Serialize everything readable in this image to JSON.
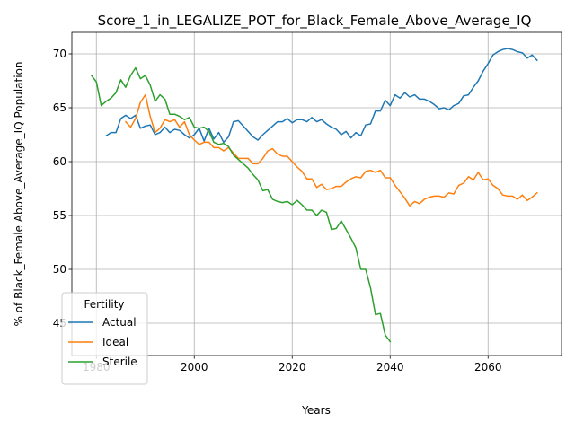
{
  "chart_data": {
    "type": "line",
    "title": "Score_1_in_LEGALIZE_POT_for_Black_Female_Above_Average_IQ",
    "xlabel": "Years",
    "ylabel": "% of Black_Female Above_Average_IQ Population",
    "xlim": [
      1975,
      2075
    ],
    "ylim": [
      42,
      72
    ],
    "xticks": [
      1980,
      2000,
      2020,
      2040,
      2060
    ],
    "yticks": [
      45,
      50,
      55,
      60,
      65,
      70
    ],
    "grid": true,
    "legend": {
      "title": "Fertility",
      "position": "bottom-left"
    },
    "series": [
      {
        "name": "Actual",
        "color": "#1f77b4",
        "x": [
          1982,
          1983,
          1984,
          1985,
          1986,
          1987,
          1988,
          1989,
          1990,
          1991,
          1992,
          1993,
          1994,
          1995,
          1996,
          1997,
          1998,
          1999,
          2000,
          2001,
          2002,
          2003,
          2004,
          2005,
          2006,
          2007,
          2008,
          2009,
          2010,
          2011,
          2012,
          2013,
          2014,
          2015,
          2016,
          2017,
          2018,
          2019,
          2020,
          2021,
          2022,
          2023,
          2024,
          2025,
          2026,
          2027,
          2028,
          2029,
          2030,
          2031,
          2032,
          2033,
          2034,
          2035,
          2036,
          2037,
          2038,
          2039,
          2040,
          2041,
          2042,
          2043,
          2044,
          2045,
          2046,
          2047,
          2048,
          2049,
          2050,
          2051,
          2052,
          2053,
          2054,
          2055,
          2056,
          2057,
          2058,
          2059,
          2060,
          2061,
          2062,
          2063,
          2064,
          2065,
          2066,
          2067,
          2068,
          2069,
          2070
        ],
        "values": [
          62.4,
          62.7,
          62.7,
          64.0,
          64.3,
          64.0,
          64.3,
          63.1,
          63.3,
          63.4,
          62.5,
          62.7,
          63.2,
          62.7,
          63.0,
          62.9,
          62.5,
          62.2,
          62.5,
          63.1,
          61.9,
          63.1,
          62.1,
          62.7,
          61.8,
          62.3,
          63.7,
          63.8,
          63.3,
          62.8,
          62.3,
          62.0,
          62.5,
          62.9,
          63.3,
          63.7,
          63.7,
          64.0,
          63.6,
          63.9,
          63.9,
          63.7,
          64.1,
          63.7,
          63.9,
          63.5,
          63.2,
          63.0,
          62.5,
          62.8,
          62.2,
          62.7,
          62.4,
          63.4,
          63.5,
          64.7,
          64.7,
          65.7,
          65.2,
          66.2,
          65.9,
          66.4,
          66.0,
          66.2,
          65.8,
          65.8,
          65.6,
          65.3,
          64.9,
          65.0,
          64.8,
          65.2,
          65.4,
          66.1,
          66.2,
          66.9,
          67.5,
          68.4,
          69.1,
          69.9,
          70.2,
          70.4,
          70.5,
          70.4,
          70.2,
          70.1,
          69.6,
          69.9,
          69.4
        ]
      },
      {
        "name": "Ideal",
        "color": "#ff7f0e",
        "x": [
          1986,
          1987,
          1988,
          1989,
          1990,
          1991,
          1992,
          1993,
          1994,
          1995,
          1996,
          1997,
          1998,
          1999,
          2000,
          2001,
          2002,
          2003,
          2004,
          2005,
          2006,
          2007,
          2008,
          2009,
          2010,
          2011,
          2012,
          2013,
          2014,
          2015,
          2016,
          2017,
          2018,
          2019,
          2020,
          2021,
          2022,
          2023,
          2024,
          2025,
          2026,
          2027,
          2028,
          2029,
          2030,
          2031,
          2032,
          2033,
          2034,
          2035,
          2036,
          2037,
          2038,
          2039,
          2040,
          2041,
          2042,
          2043,
          2044,
          2045,
          2046,
          2047,
          2048,
          2049,
          2050,
          2051,
          2052,
          2053,
          2054,
          2055,
          2056,
          2057,
          2058,
          2059,
          2060,
          2061,
          2062,
          2063,
          2064,
          2065,
          2066,
          2067,
          2068,
          2069,
          2070
        ],
        "values": [
          63.7,
          63.2,
          64.0,
          65.5,
          66.2,
          64.2,
          62.7,
          63.1,
          63.9,
          63.7,
          63.9,
          63.2,
          63.7,
          62.5,
          62.0,
          61.6,
          61.8,
          61.8,
          61.3,
          61.3,
          61.0,
          61.3,
          60.8,
          60.3,
          60.3,
          60.3,
          59.8,
          59.8,
          60.3,
          61.0,
          61.2,
          60.7,
          60.5,
          60.5,
          60.0,
          59.5,
          59.1,
          58.4,
          58.4,
          57.6,
          57.9,
          57.4,
          57.5,
          57.7,
          57.7,
          58.1,
          58.4,
          58.6,
          58.5,
          59.1,
          59.2,
          59.0,
          59.2,
          58.5,
          58.5,
          57.8,
          57.2,
          56.6,
          55.9,
          56.3,
          56.1,
          56.5,
          56.7,
          56.8,
          56.8,
          56.7,
          57.1,
          57.0,
          57.8,
          58.0,
          58.6,
          58.3,
          59.0,
          58.3,
          58.4,
          57.8,
          57.5,
          56.9,
          56.8,
          56.8,
          56.5,
          56.9,
          56.4,
          56.7,
          57.1
        ]
      },
      {
        "name": "Sterile",
        "color": "#2ca02c",
        "x": [
          1979,
          1980,
          1981,
          1982,
          1983,
          1984,
          1985,
          1986,
          1987,
          1988,
          1989,
          1990,
          1991,
          1992,
          1993,
          1994,
          1995,
          1996,
          1997,
          1998,
          1999,
          2000,
          2001,
          2002,
          2003,
          2004,
          2005,
          2006,
          2007,
          2008,
          2009,
          2010,
          2011,
          2012,
          2013,
          2014,
          2015,
          2016,
          2017,
          2018,
          2019,
          2020,
          2021,
          2022,
          2023,
          2024,
          2025,
          2026,
          2027,
          2028,
          2029,
          2030,
          2031,
          2032,
          2033,
          2034,
          2035,
          2036,
          2037,
          2038,
          2039,
          2040
        ],
        "values": [
          68.0,
          67.4,
          65.2,
          65.6,
          65.9,
          66.4,
          67.6,
          66.9,
          68.0,
          68.7,
          67.7,
          68.0,
          67.1,
          65.6,
          66.2,
          65.8,
          64.4,
          64.4,
          64.2,
          63.9,
          64.1,
          63.2,
          63.1,
          63.2,
          62.8,
          61.8,
          61.6,
          61.7,
          61.4,
          60.6,
          60.2,
          59.8,
          59.4,
          58.8,
          58.3,
          57.3,
          57.4,
          56.5,
          56.3,
          56.2,
          56.3,
          56.0,
          56.4,
          56.0,
          55.5,
          55.5,
          55.0,
          55.5,
          55.3,
          53.7,
          53.8,
          54.5,
          53.7,
          52.9,
          52.0,
          50.0,
          50.0,
          48.3,
          45.8,
          45.9,
          43.9,
          43.3
        ]
      }
    ]
  }
}
